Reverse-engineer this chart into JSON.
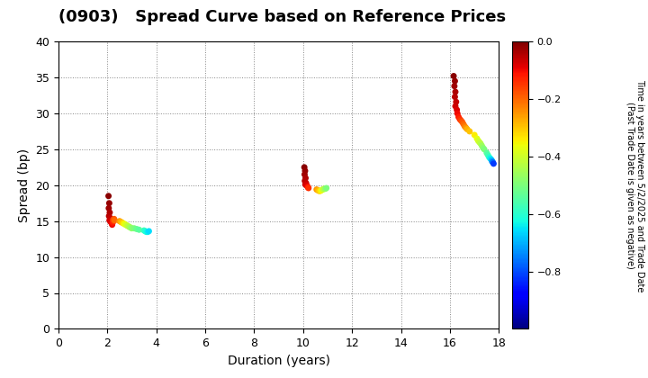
{
  "title": "(0903)   Spread Curve based on Reference Prices",
  "xlabel": "Duration (years)",
  "ylabel": "Spread (bp)",
  "xlim": [
    0,
    18
  ],
  "ylim": [
    0,
    40
  ],
  "xticks": [
    0,
    2,
    4,
    6,
    8,
    10,
    12,
    14,
    16,
    18
  ],
  "yticks": [
    0,
    5,
    10,
    15,
    20,
    25,
    30,
    35,
    40
  ],
  "colorbar_label_line1": "Time in years between 5/2/2025 and Trade Date",
  "colorbar_label_line2": "(Past Trade Date is given as negative)",
  "colorbar_vmin": -1.0,
  "colorbar_vmax": 0.0,
  "colorbar_ticks": [
    0.0,
    -0.2,
    -0.4,
    -0.6,
    -0.8
  ],
  "clusters": [
    {
      "points": [
        {
          "duration": 2.05,
          "spread": 18.5,
          "color_val": -0.01
        },
        {
          "duration": 2.08,
          "spread": 17.5,
          "color_val": -0.02
        },
        {
          "duration": 2.06,
          "spread": 16.8,
          "color_val": -0.03
        },
        {
          "duration": 2.1,
          "spread": 16.2,
          "color_val": -0.04
        },
        {
          "duration": 2.07,
          "spread": 15.7,
          "color_val": -0.05
        },
        {
          "duration": 2.12,
          "spread": 15.4,
          "color_val": -0.06
        },
        {
          "duration": 2.09,
          "spread": 15.1,
          "color_val": -0.07
        },
        {
          "duration": 2.14,
          "spread": 14.9,
          "color_val": -0.08
        },
        {
          "duration": 2.18,
          "spread": 14.7,
          "color_val": -0.09
        },
        {
          "duration": 2.2,
          "spread": 14.5,
          "color_val": -0.1
        },
        {
          "duration": 2.22,
          "spread": 14.8,
          "color_val": -0.12
        },
        {
          "duration": 2.25,
          "spread": 15.0,
          "color_val": -0.14
        },
        {
          "duration": 2.24,
          "spread": 15.2,
          "color_val": -0.16
        },
        {
          "duration": 2.28,
          "spread": 15.3,
          "color_val": -0.18
        },
        {
          "duration": 2.3,
          "spread": 15.1,
          "color_val": -0.2
        },
        {
          "duration": 2.5,
          "spread": 15.0,
          "color_val": -0.25
        },
        {
          "duration": 2.55,
          "spread": 14.9,
          "color_val": -0.28
        },
        {
          "duration": 2.6,
          "spread": 14.8,
          "color_val": -0.3
        },
        {
          "duration": 2.65,
          "spread": 14.7,
          "color_val": -0.33
        },
        {
          "duration": 2.7,
          "spread": 14.6,
          "color_val": -0.36
        },
        {
          "duration": 2.75,
          "spread": 14.5,
          "color_val": -0.38
        },
        {
          "duration": 2.8,
          "spread": 14.4,
          "color_val": -0.4
        },
        {
          "duration": 2.85,
          "spread": 14.3,
          "color_val": -0.42
        },
        {
          "duration": 2.9,
          "spread": 14.2,
          "color_val": -0.44
        },
        {
          "duration": 2.95,
          "spread": 14.1,
          "color_val": -0.46
        },
        {
          "duration": 3.0,
          "spread": 14.0,
          "color_val": -0.48
        },
        {
          "duration": 3.1,
          "spread": 14.0,
          "color_val": -0.5
        },
        {
          "duration": 3.2,
          "spread": 13.9,
          "color_val": -0.52
        },
        {
          "duration": 3.3,
          "spread": 13.8,
          "color_val": -0.54
        },
        {
          "duration": 3.5,
          "spread": 13.7,
          "color_val": -0.58
        },
        {
          "duration": 3.55,
          "spread": 13.6,
          "color_val": -0.6
        },
        {
          "duration": 3.6,
          "spread": 13.5,
          "color_val": -0.62
        },
        {
          "duration": 3.65,
          "spread": 13.5,
          "color_val": -0.64
        },
        {
          "duration": 3.7,
          "spread": 13.6,
          "color_val": -0.66
        }
      ]
    },
    {
      "points": [
        {
          "duration": 10.05,
          "spread": 22.5,
          "color_val": -0.01
        },
        {
          "duration": 10.08,
          "spread": 22.0,
          "color_val": -0.02
        },
        {
          "duration": 10.06,
          "spread": 21.5,
          "color_val": -0.03
        },
        {
          "duration": 10.1,
          "spread": 21.0,
          "color_val": -0.04
        },
        {
          "duration": 10.07,
          "spread": 20.6,
          "color_val": -0.05
        },
        {
          "duration": 10.12,
          "spread": 20.3,
          "color_val": -0.06
        },
        {
          "duration": 10.09,
          "spread": 20.1,
          "color_val": -0.07
        },
        {
          "duration": 10.14,
          "spread": 20.0,
          "color_val": -0.08
        },
        {
          "duration": 10.18,
          "spread": 19.8,
          "color_val": -0.1
        },
        {
          "duration": 10.2,
          "spread": 19.7,
          "color_val": -0.12
        },
        {
          "duration": 10.22,
          "spread": 19.6,
          "color_val": -0.14
        },
        {
          "duration": 10.55,
          "spread": 19.4,
          "color_val": -0.25
        },
        {
          "duration": 10.6,
          "spread": 19.3,
          "color_val": -0.28
        },
        {
          "duration": 10.65,
          "spread": 19.2,
          "color_val": -0.3
        },
        {
          "duration": 10.7,
          "spread": 19.2,
          "color_val": -0.33
        },
        {
          "duration": 10.75,
          "spread": 19.3,
          "color_val": -0.36
        },
        {
          "duration": 10.8,
          "spread": 19.4,
          "color_val": -0.4
        },
        {
          "duration": 10.85,
          "spread": 19.5,
          "color_val": -0.43
        },
        {
          "duration": 10.9,
          "spread": 19.5,
          "color_val": -0.46
        },
        {
          "duration": 10.95,
          "spread": 19.6,
          "color_val": -0.5
        }
      ]
    },
    {
      "points": [
        {
          "duration": 16.15,
          "spread": 35.2,
          "color_val": -0.01
        },
        {
          "duration": 16.2,
          "spread": 34.5,
          "color_val": -0.02
        },
        {
          "duration": 16.18,
          "spread": 33.8,
          "color_val": -0.03
        },
        {
          "duration": 16.22,
          "spread": 33.0,
          "color_val": -0.04
        },
        {
          "duration": 16.2,
          "spread": 32.3,
          "color_val": -0.05
        },
        {
          "duration": 16.25,
          "spread": 31.6,
          "color_val": -0.06
        },
        {
          "duration": 16.22,
          "spread": 31.0,
          "color_val": -0.07
        },
        {
          "duration": 16.28,
          "spread": 30.5,
          "color_val": -0.08
        },
        {
          "duration": 16.3,
          "spread": 30.0,
          "color_val": -0.1
        },
        {
          "duration": 16.35,
          "spread": 29.5,
          "color_val": -0.12
        },
        {
          "duration": 16.4,
          "spread": 29.2,
          "color_val": -0.14
        },
        {
          "duration": 16.45,
          "spread": 29.0,
          "color_val": -0.16
        },
        {
          "duration": 16.5,
          "spread": 28.8,
          "color_val": -0.18
        },
        {
          "duration": 16.55,
          "spread": 28.5,
          "color_val": -0.2
        },
        {
          "duration": 16.6,
          "spread": 28.2,
          "color_val": -0.22
        },
        {
          "duration": 16.65,
          "spread": 28.0,
          "color_val": -0.25
        },
        {
          "duration": 16.7,
          "spread": 27.8,
          "color_val": -0.28
        },
        {
          "duration": 16.8,
          "spread": 27.5,
          "color_val": -0.3
        },
        {
          "duration": 17.0,
          "spread": 27.0,
          "color_val": -0.34
        },
        {
          "duration": 17.1,
          "spread": 26.5,
          "color_val": -0.37
        },
        {
          "duration": 17.15,
          "spread": 26.2,
          "color_val": -0.39
        },
        {
          "duration": 17.2,
          "spread": 26.0,
          "color_val": -0.41
        },
        {
          "duration": 17.25,
          "spread": 25.8,
          "color_val": -0.43
        },
        {
          "duration": 17.3,
          "spread": 25.5,
          "color_val": -0.46
        },
        {
          "duration": 17.35,
          "spread": 25.2,
          "color_val": -0.48
        },
        {
          "duration": 17.4,
          "spread": 25.0,
          "color_val": -0.5
        },
        {
          "duration": 17.5,
          "spread": 24.5,
          "color_val": -0.54
        },
        {
          "duration": 17.55,
          "spread": 24.2,
          "color_val": -0.56
        },
        {
          "duration": 17.6,
          "spread": 23.9,
          "color_val": -0.6
        },
        {
          "duration": 17.65,
          "spread": 23.7,
          "color_val": -0.64
        },
        {
          "duration": 17.7,
          "spread": 23.5,
          "color_val": -0.68
        },
        {
          "duration": 17.72,
          "spread": 23.3,
          "color_val": -0.72
        },
        {
          "duration": 17.75,
          "spread": 23.2,
          "color_val": -0.76
        },
        {
          "duration": 17.78,
          "spread": 23.0,
          "color_val": -0.82
        }
      ]
    }
  ],
  "background_color": "#ffffff",
  "grid_color": "#888888",
  "marker_size": 25,
  "title_fontsize": 13,
  "axis_fontsize": 10,
  "tick_fontsize": 9,
  "cbar_fontsize": 8
}
